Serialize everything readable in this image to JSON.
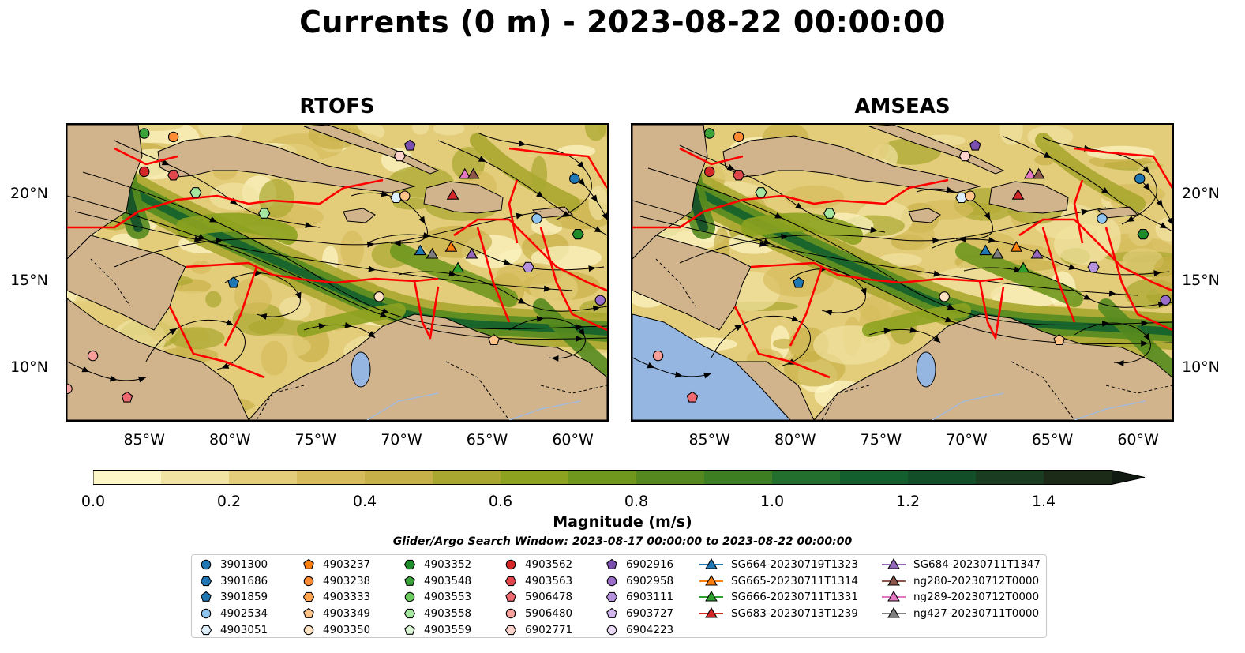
{
  "figure": {
    "title": "Currents (0 m) - 2023-08-22 00:00:00",
    "search_window": "Glider/Argo Search Window: 2023-08-17 00:00:00 to 2023-08-22 00:00:00"
  },
  "panels": [
    {
      "title": "RTOFS",
      "lat_ticks": [
        "20°N",
        "15°N",
        "10°N"
      ],
      "lat_side": "left",
      "lon_ticks": [
        "85°W",
        "80°W",
        "75°W",
        "70°W",
        "65°W",
        "60°W"
      ]
    },
    {
      "title": "AMSEAS",
      "lat_ticks": [
        "20°N",
        "15°N",
        "10°N"
      ],
      "lat_side": "right",
      "lon_ticks": [
        "85°W",
        "80°W",
        "75°W",
        "70°W",
        "65°W",
        "60°W"
      ]
    }
  ],
  "map_extent": {
    "lon_min": -89.5,
    "lon_max": -58.0,
    "lat_min": 7.0,
    "lat_max": 24.0
  },
  "colorbar": {
    "label": "Magnitude (m/s)",
    "min": 0.0,
    "max": 1.5,
    "step": 0.1,
    "extend": "max",
    "ticks": [
      "0.0",
      "0.2",
      "0.4",
      "0.6",
      "0.8",
      "1.0",
      "1.2",
      "1.4"
    ],
    "colors": [
      "#fdf6c7",
      "#f1e3a1",
      "#e3cd7b",
      "#d6bc5d",
      "#c7b047",
      "#a9a72f",
      "#8da21f",
      "#6f971e",
      "#55891f",
      "#3e7e23",
      "#236f2d",
      "#13602e",
      "#124f29",
      "#1a3c20",
      "#1b2b18"
    ]
  },
  "palette": {
    "land": "#d2b48c",
    "lake": "#94b6e1",
    "eez": "#ff0000",
    "stream": "#000000"
  },
  "legend": {
    "columns": [
      [
        {
          "label": "3901300",
          "marker": "circle",
          "color": "#1f77b4"
        },
        {
          "label": "3901686",
          "marker": "hexagon",
          "color": "#1f77b4"
        },
        {
          "label": "3901859",
          "marker": "pentagon",
          "color": "#1f77b4"
        },
        {
          "label": "4902534",
          "marker": "circle",
          "color": "#8fc5ef"
        },
        {
          "label": "4903051",
          "marker": "hexagon",
          "color": "#dcedfb"
        }
      ],
      [
        {
          "label": "4903237",
          "marker": "pentagon",
          "color": "#ff7f0e"
        },
        {
          "label": "4903238",
          "marker": "circle",
          "color": "#ff8c35"
        },
        {
          "label": "4903333",
          "marker": "hexagon",
          "color": "#ffa54f"
        },
        {
          "label": "4903349",
          "marker": "pentagon",
          "color": "#ffc48a"
        },
        {
          "label": "4903350",
          "marker": "circle",
          "color": "#ffe2c2"
        }
      ],
      [
        {
          "label": "4903352",
          "marker": "hexagon",
          "color": "#1e8c2a"
        },
        {
          "label": "4903548",
          "marker": "pentagon",
          "color": "#3aa43a"
        },
        {
          "label": "4903553",
          "marker": "circle",
          "color": "#6bcb5e"
        },
        {
          "label": "4903558",
          "marker": "hexagon",
          "color": "#a5e6a0"
        },
        {
          "label": "4903559",
          "marker": "pentagon",
          "color": "#d9f5d4"
        }
      ],
      [
        {
          "label": "4903562",
          "marker": "circle",
          "color": "#d62728"
        },
        {
          "label": "4903563",
          "marker": "hexagon",
          "color": "#e0474a"
        },
        {
          "label": "5906478",
          "marker": "pentagon",
          "color": "#ee6a70"
        },
        {
          "label": "5906480",
          "marker": "circle",
          "color": "#f7a09b"
        },
        {
          "label": "6902771",
          "marker": "hexagon",
          "color": "#fcd2cd"
        }
      ],
      [
        {
          "label": "6902916",
          "marker": "pentagon",
          "color": "#7b4fb0"
        },
        {
          "label": "6902958",
          "marker": "circle",
          "color": "#9b6fc9"
        },
        {
          "label": "6903111",
          "marker": "hexagon",
          "color": "#b692de"
        },
        {
          "label": "6903727",
          "marker": "pentagon",
          "color": "#d2b6ee"
        },
        {
          "label": "6904223",
          "marker": "circle",
          "color": "#ead9f7"
        }
      ],
      [
        {
          "label": "SG664-20230719T1323",
          "marker": "triangle",
          "color": "#1f77b4"
        },
        {
          "label": "SG665-20230711T1314",
          "marker": "triangle",
          "color": "#ff7f0e"
        },
        {
          "label": "SG666-20230711T1331",
          "marker": "triangle",
          "color": "#2ca02c"
        },
        {
          "label": "SG683-20230713T1239",
          "marker": "triangle",
          "color": "#d62728"
        }
      ],
      [
        {
          "label": "SG684-20230711T1347",
          "marker": "triangle",
          "color": "#9467bd"
        },
        {
          "label": "ng280-20230712T0000",
          "marker": "triangle",
          "color": "#8c564b"
        },
        {
          "label": "ng289-20230712T0000",
          "marker": "triangle",
          "color": "#e377c2"
        },
        {
          "label": "ng427-20230711T0000",
          "marker": "triangle",
          "color": "#7f7f7f"
        }
      ]
    ]
  },
  "floats_rtofs": [
    {
      "marker": "circle",
      "color": "#3aa43a",
      "lon": -85.0,
      "lat": 23.5
    },
    {
      "marker": "circle",
      "color": "#ff8c35",
      "lon": -83.3,
      "lat": 23.3
    },
    {
      "marker": "circle",
      "color": "#d62728",
      "lon": -85.0,
      "lat": 21.3
    },
    {
      "marker": "hexagon",
      "color": "#e0474a",
      "lon": -83.3,
      "lat": 21.1
    },
    {
      "marker": "hexagon",
      "color": "#a5e6a0",
      "lon": -82.0,
      "lat": 20.1
    },
    {
      "marker": "hexagon",
      "color": "#a5e6a0",
      "lon": -78.0,
      "lat": 18.9
    },
    {
      "marker": "pentagon",
      "color": "#7b4fb0",
      "lon": -69.5,
      "lat": 22.8
    },
    {
      "marker": "hexagon",
      "color": "#fcd2cd",
      "lon": -70.1,
      "lat": 22.2
    },
    {
      "marker": "hexagon",
      "color": "#dcedfb",
      "lon": -70.3,
      "lat": 19.8
    },
    {
      "marker": "circle",
      "color": "#ffc48a",
      "lon": -69.8,
      "lat": 19.9
    },
    {
      "marker": "circle",
      "color": "#1f77b4",
      "lon": -59.9,
      "lat": 20.9
    },
    {
      "marker": "circle",
      "color": "#8fc5ef",
      "lon": -62.1,
      "lat": 18.6
    },
    {
      "marker": "hexagon",
      "color": "#1e8c2a",
      "lon": -59.7,
      "lat": 17.7
    },
    {
      "marker": "hexagon",
      "color": "#b692de",
      "lon": -62.6,
      "lat": 15.8
    },
    {
      "marker": "circle",
      "color": "#9b6fc9",
      "lon": -58.4,
      "lat": 13.9
    },
    {
      "marker": "pentagon",
      "color": "#1f77b4",
      "lon": -79.8,
      "lat": 14.9
    },
    {
      "marker": "circle",
      "color": "#ffe2c2",
      "lon": -71.3,
      "lat": 14.1
    },
    {
      "marker": "pentagon",
      "color": "#ffc48a",
      "lon": -64.6,
      "lat": 11.6
    },
    {
      "marker": "circle",
      "color": "#f7a09b",
      "lon": -88.0,
      "lat": 10.7
    },
    {
      "marker": "pentagon",
      "color": "#ee6a70",
      "lon": -86.0,
      "lat": 8.3
    },
    {
      "marker": "circle",
      "color": "#f7a09b",
      "lon": -89.5,
      "lat": 8.8
    }
  ],
  "floats_amseas": [
    {
      "marker": "circle",
      "color": "#3aa43a",
      "lon": -85.0,
      "lat": 23.5
    },
    {
      "marker": "circle",
      "color": "#ff8c35",
      "lon": -83.3,
      "lat": 23.3
    },
    {
      "marker": "circle",
      "color": "#d62728",
      "lon": -85.0,
      "lat": 21.3
    },
    {
      "marker": "hexagon",
      "color": "#e0474a",
      "lon": -83.3,
      "lat": 21.1
    },
    {
      "marker": "hexagon",
      "color": "#a5e6a0",
      "lon": -82.0,
      "lat": 20.1
    },
    {
      "marker": "hexagon",
      "color": "#a5e6a0",
      "lon": -78.0,
      "lat": 18.9
    },
    {
      "marker": "pentagon",
      "color": "#7b4fb0",
      "lon": -69.5,
      "lat": 22.8
    },
    {
      "marker": "hexagon",
      "color": "#fcd2cd",
      "lon": -70.1,
      "lat": 22.2
    },
    {
      "marker": "hexagon",
      "color": "#dcedfb",
      "lon": -70.3,
      "lat": 19.8
    },
    {
      "marker": "circle",
      "color": "#ffc48a",
      "lon": -69.8,
      "lat": 19.9
    },
    {
      "marker": "circle",
      "color": "#1f77b4",
      "lon": -59.9,
      "lat": 20.9
    },
    {
      "marker": "circle",
      "color": "#8fc5ef",
      "lon": -62.1,
      "lat": 18.6
    },
    {
      "marker": "hexagon",
      "color": "#1e8c2a",
      "lon": -59.7,
      "lat": 17.7
    },
    {
      "marker": "hexagon",
      "color": "#b692de",
      "lon": -62.6,
      "lat": 15.8
    },
    {
      "marker": "circle",
      "color": "#9b6fc9",
      "lon": -58.4,
      "lat": 13.9
    },
    {
      "marker": "pentagon",
      "color": "#1f77b4",
      "lon": -79.8,
      "lat": 14.9
    },
    {
      "marker": "circle",
      "color": "#ffe2c2",
      "lon": -71.3,
      "lat": 14.1
    },
    {
      "marker": "pentagon",
      "color": "#ffc48a",
      "lon": -64.6,
      "lat": 11.6
    },
    {
      "marker": "circle",
      "color": "#f7a09b",
      "lon": -88.0,
      "lat": 10.7
    },
    {
      "marker": "pentagon",
      "color": "#ee6a70",
      "lon": -86.0,
      "lat": 8.3
    }
  ],
  "gliders": [
    {
      "color": "#1f77b4",
      "lon": -68.9,
      "lat": 16.7
    },
    {
      "color": "#7f7f7f",
      "lon": -68.2,
      "lat": 16.5
    },
    {
      "color": "#ff7f0e",
      "lon": -67.1,
      "lat": 16.9
    },
    {
      "color": "#2ca02c",
      "lon": -66.7,
      "lat": 15.7
    },
    {
      "color": "#9467bd",
      "lon": -65.9,
      "lat": 16.5
    },
    {
      "color": "#d62728",
      "lon": -67.0,
      "lat": 19.9
    },
    {
      "color": "#e377c2",
      "lon": -66.3,
      "lat": 21.1
    },
    {
      "color": "#8c564b",
      "lon": -65.8,
      "lat": 21.1
    }
  ]
}
